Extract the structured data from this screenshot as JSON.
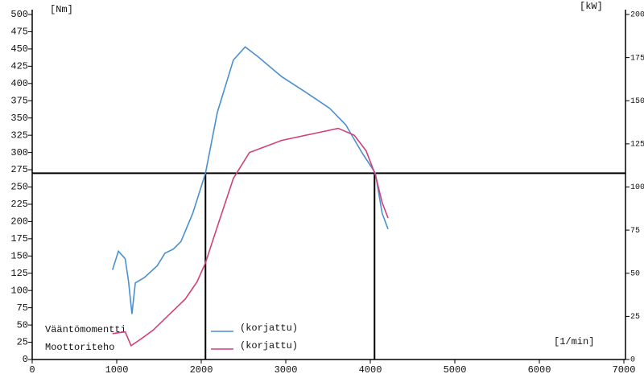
{
  "chart_data": {
    "type": "line",
    "y_unit": "[Nm]",
    "y2_unit": "[kW]",
    "x_unit": "[1/min]",
    "xlim": [
      0,
      7000
    ],
    "xticks": [
      0,
      1000,
      2000,
      3000,
      4000,
      5000,
      6000,
      7000
    ],
    "ylim": [
      0,
      500
    ],
    "yticks": [
      0,
      25,
      50,
      75,
      100,
      125,
      150,
      175,
      200,
      225,
      250,
      275,
      300,
      325,
      350,
      375,
      400,
      425,
      450,
      475,
      500
    ],
    "y2lim": [
      0,
      200
    ],
    "y2ticks": [
      0,
      25,
      50,
      75,
      100,
      125,
      150,
      175,
      200
    ],
    "reference_lines": {
      "y": 270,
      "x": [
        2050,
        4050
      ]
    },
    "series": [
      {
        "name": "Vääntömomentti",
        "note": "(korjattu)",
        "color": "#4a8fd0",
        "x": [
          950,
          1020,
          1100,
          1140,
          1180,
          1220,
          1330,
          1480,
          1570,
          1670,
          1760,
          1900,
          2050,
          2190,
          2380,
          2520,
          2670,
          2950,
          3240,
          3520,
          3710,
          3900,
          4060,
          4140,
          4210
        ],
        "values": [
          130,
          157,
          146,
          113,
          66,
          111,
          119,
          136,
          154,
          160,
          171,
          212,
          270,
          358,
          434,
          453,
          439,
          410,
          387,
          364,
          340,
          300,
          270,
          212,
          189
        ]
      },
      {
        "name": "Moottoriteho",
        "note": "(korjattu)",
        "color": "#d0407a",
        "axis": "y2",
        "x": [
          950,
          1100,
          1170,
          1290,
          1430,
          1620,
          1810,
          1950,
          2050,
          2190,
          2380,
          2570,
          2950,
          3430,
          3620,
          3810,
          3950,
          4060,
          4140,
          4210
        ],
        "values": [
          15,
          16,
          8,
          12,
          17,
          26,
          35,
          45,
          56,
          77,
          105,
          120,
          127,
          132,
          134,
          130,
          121,
          107,
          91,
          82
        ]
      }
    ]
  }
}
